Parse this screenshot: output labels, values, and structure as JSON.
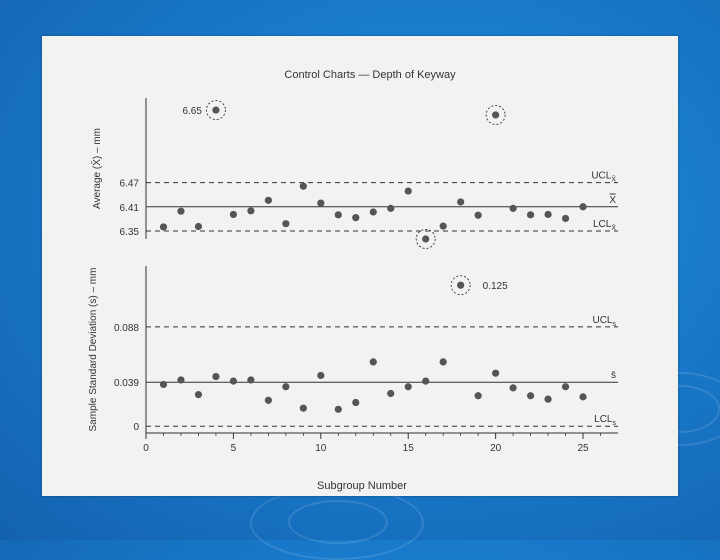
{
  "chart_data": [
    {
      "type": "scatter",
      "title": "Control Charts — Depth of Keyway",
      "ylabel": "Average (X̄) – mm",
      "ylim": [
        6.33,
        6.68
      ],
      "yticks": [
        "6.35",
        "6.41",
        "6.47"
      ],
      "xlim": [
        0,
        27
      ],
      "center_line": {
        "label": "X̿",
        "value": 6.41
      },
      "ucl": {
        "label": "UCL",
        "sub": "X̄",
        "value": 6.47
      },
      "lcl": {
        "label": "LCL",
        "sub": "X̄",
        "value": 6.35
      },
      "x": [
        1,
        2,
        3,
        4,
        5,
        6,
        7,
        8,
        9,
        10,
        11,
        12,
        13,
        14,
        15,
        16,
        17,
        18,
        19,
        20,
        21,
        22,
        23,
        24,
        25
      ],
      "values": [
        6.36,
        6.399,
        6.361,
        6.65,
        6.391,
        6.4,
        6.426,
        6.368,
        6.461,
        6.419,
        6.39,
        6.383,
        6.397,
        6.406,
        6.449,
        6.33,
        6.362,
        6.422,
        6.389,
        6.638,
        6.406,
        6.39,
        6.391,
        6.381,
        6.41
      ],
      "circled": [
        4,
        16,
        20
      ],
      "annotations": [
        {
          "x": 4,
          "text": "6.65"
        }
      ]
    },
    {
      "type": "scatter",
      "ylabel": "Sample Standard Deviation (s) – mm",
      "xlabel": "Subgroup Number",
      "ylim": [
        -0.006,
        0.142
      ],
      "yticks": [
        "0",
        "0.039",
        "0.088"
      ],
      "xlim": [
        0,
        27
      ],
      "xticks": [
        "0",
        "5",
        "10",
        "15",
        "20",
        "25"
      ],
      "center_line": {
        "label": "s̄",
        "value": 0.039
      },
      "ucl": {
        "label": "UCL",
        "sub": "s",
        "value": 0.088
      },
      "lcl": {
        "label": "LCL",
        "sub": "s",
        "value": 0
      },
      "x": [
        1,
        2,
        3,
        4,
        5,
        6,
        7,
        8,
        9,
        10,
        11,
        12,
        13,
        14,
        15,
        16,
        17,
        18,
        19,
        20,
        21,
        22,
        23,
        24,
        25
      ],
      "values": [
        0.037,
        0.041,
        0.028,
        0.044,
        0.04,
        0.041,
        0.023,
        0.035,
        0.016,
        0.045,
        0.015,
        0.021,
        0.057,
        0.029,
        0.035,
        0.04,
        0.057,
        0.125,
        0.027,
        0.047,
        0.034,
        0.027,
        0.024,
        0.035,
        0.026
      ],
      "circled": [
        18
      ],
      "annotations": [
        {
          "x": 18,
          "text": "0.125"
        }
      ]
    }
  ],
  "colors": {
    "background": "#1876c7",
    "paper": "#f2f2f0",
    "ink": "#333333"
  }
}
